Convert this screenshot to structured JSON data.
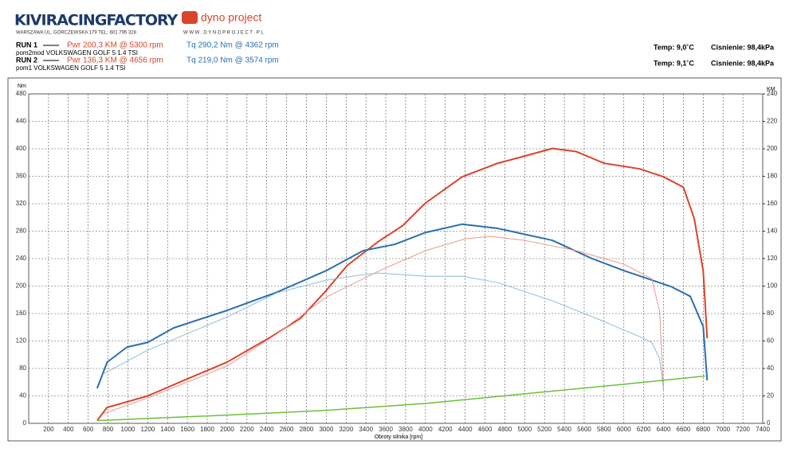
{
  "header": {
    "brand": "KIVIRACINGFACTORY",
    "address": "WARSZAWA UL. GÓRCZEWSKA 179   TEL: 601 795 328",
    "logo": "dyno project",
    "website": "W W W . D Y N O P R O J E C T . P L",
    "runs": [
      {
        "label": "RUN 1",
        "power": "Pwr 200,3 KM @ 5300 rpm",
        "torque": "Tq 290,2 Nm @ 4362 rpm",
        "car": "pom2mod VOLKSWAGEN GOLF 5 1.4 TSI",
        "temp": "Temp: 9,0˚C",
        "pressure": "Cisnienie: 98,4kPa"
      },
      {
        "label": "RUN 2",
        "power": "Pwr 136,3 KM @ 4656 rpm",
        "torque": "Tq 219,0 Nm @ 3574 rpm",
        "car": "pom1 VOLKSWAGEN GOLF 5 1.4 TSI",
        "temp": "Temp: 9,1˚C",
        "pressure": "Cisnienie: 98,4kPa"
      }
    ]
  },
  "chart_data": {
    "type": "line",
    "y_label": "Nm",
    "y2_label": "KM",
    "x_label": "Obroty silnika [rpm]",
    "xlim": [
      0,
      7400
    ],
    "xticks": [
      200,
      400,
      600,
      800,
      1000,
      1200,
      1400,
      1600,
      1800,
      2000,
      2200,
      2400,
      2600,
      2800,
      3000,
      3200,
      3400,
      3600,
      3800,
      4000,
      4200,
      4400,
      4600,
      4800,
      5000,
      5200,
      5400,
      5600,
      5800,
      6000,
      6200,
      6400,
      6600,
      6800,
      7000,
      7200,
      7400
    ],
    "ylim": [
      0,
      480
    ],
    "yticks": [
      0,
      40,
      80,
      120,
      160,
      200,
      240,
      280,
      320,
      360,
      400,
      440,
      480
    ],
    "y2lim": [
      0,
      240
    ],
    "y2ticks": [
      0,
      20,
      40,
      60,
      80,
      100,
      120,
      140,
      160,
      180,
      200,
      220,
      240
    ],
    "grid": true,
    "series": [
      {
        "color": "#d9442a",
        "width": 2,
        "axis": "y2",
        "x": [
          690,
          790,
          990,
          1200,
          1620,
          2000,
          2420,
          2740,
          3000,
          3210,
          3530,
          3770,
          4000,
          4370,
          4730,
          5000,
          5280,
          5520,
          5800,
          6160,
          6400,
          6600,
          6710,
          6800,
          6840
        ],
        "values": [
          2,
          11.6,
          15.6,
          20,
          33,
          44.6,
          62,
          76.5,
          96.8,
          115,
          132.7,
          144,
          160.5,
          179.6,
          189.5,
          194.7,
          200.3,
          198,
          189.5,
          185.4,
          179.6,
          172,
          149,
          111,
          62
        ]
      },
      {
        "color": "#2a6fb0",
        "width": 2,
        "axis": "y",
        "x": [
          690,
          790,
          990,
          1200,
          1460,
          2000,
          2500,
          3000,
          3370,
          3690,
          4000,
          4370,
          4730,
          5280,
          5680,
          6000,
          6480,
          6670,
          6800,
          6840
        ],
        "values": [
          51,
          89,
          111,
          118,
          139,
          164.6,
          191,
          222.5,
          251.5,
          260.8,
          278,
          290.2,
          284,
          266.6,
          240,
          222.5,
          199,
          185,
          141,
          62.6
        ]
      },
      {
        "color": "#e89a90",
        "width": 1,
        "axis": "y2",
        "x": [
          750,
          1200,
          2000,
          2500,
          3000,
          3530,
          4000,
          4400,
          4650,
          5000,
          5520,
          6000,
          6280,
          6360,
          6400
        ],
        "values": [
          7,
          18.5,
          41.7,
          65,
          92,
          111,
          125.8,
          134.4,
          136.2,
          133.3,
          125.8,
          115.9,
          105.5,
          82,
          24
        ]
      },
      {
        "color": "#8fbcd8",
        "width": 1,
        "axis": "y",
        "x": [
          750,
          1200,
          2000,
          2500,
          3000,
          3370,
          3530,
          4000,
          4370,
          4730,
          5280,
          5760,
          6160,
          6280,
          6360,
          6400
        ],
        "values": [
          72,
          106.6,
          155,
          190,
          208.6,
          216.7,
          219,
          214.4,
          214.4,
          205,
          178.5,
          150.7,
          126.3,
          118,
          95,
          48.7
        ]
      },
      {
        "color": "#6cbf3a",
        "width": 1.5,
        "axis": "y2",
        "x": [
          690,
          2000,
          3000,
          4000,
          5000,
          6000,
          6820
        ],
        "values": [
          2,
          6,
          9.5,
          14.5,
          21.5,
          28.5,
          34.5
        ]
      }
    ]
  }
}
